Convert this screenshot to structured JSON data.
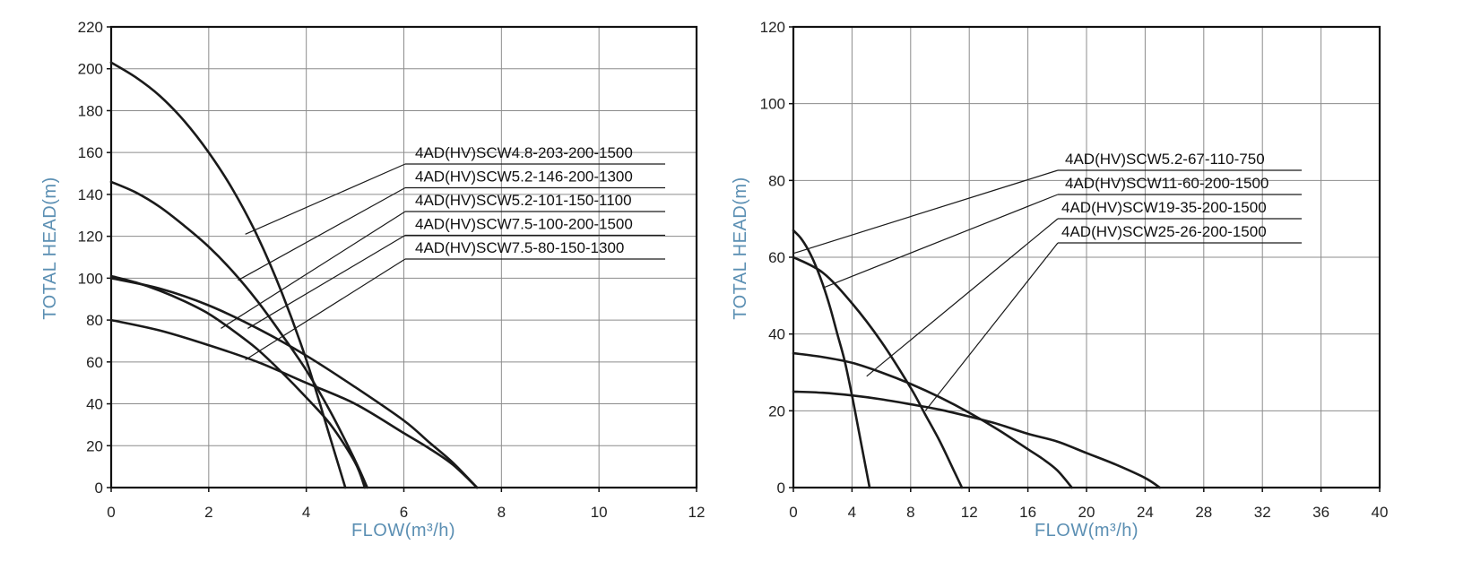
{
  "colors": {
    "axis_title": "#5b8fb3",
    "curve": "#1a1a1a",
    "grid": "#8c8c8c"
  },
  "chart_data": [
    {
      "type": "line",
      "xlabel": "FLOW(m³/h)",
      "ylabel": "TOTAL HEAD(m)",
      "xlim": [
        0,
        12
      ],
      "ylim": [
        0,
        220
      ],
      "xticks": [
        0,
        2,
        4,
        6,
        8,
        10,
        12
      ],
      "yticks": [
        0,
        20,
        40,
        60,
        80,
        100,
        120,
        140,
        160,
        180,
        200,
        220
      ],
      "grid": true,
      "series": [
        {
          "name": "4AD(HV)SCW4.8-203-200-1500",
          "x": [
            0,
            0.5,
            1,
            1.5,
            2,
            2.5,
            3,
            3.5,
            4,
            4.5,
            4.8
          ],
          "y": [
            203,
            196,
            187,
            175,
            160,
            142,
            120,
            93,
            61,
            23,
            0
          ]
        },
        {
          "name": "4AD(HV)SCW5.2-146-200-1300",
          "x": [
            0,
            0.5,
            1,
            1.5,
            2,
            2.5,
            3,
            3.5,
            4,
            4.5,
            5,
            5.25
          ],
          "y": [
            146,
            141,
            134,
            125,
            115,
            103,
            89,
            73,
            56,
            36,
            13,
            0
          ]
        },
        {
          "name": "4AD(HV)SCW5.2-101-150-1100",
          "x": [
            0,
            0.5,
            1,
            1.5,
            2,
            2.5,
            3,
            3.5,
            4,
            4.5,
            5,
            5.2
          ],
          "y": [
            101,
            98,
            94,
            89,
            83,
            75,
            66,
            55,
            43,
            30,
            12,
            0
          ]
        },
        {
          "name": "4AD(HV)SCW7.5-100-200-1500",
          "x": [
            0,
            1,
            2,
            3,
            4,
            5,
            6,
            6.5,
            7,
            7.5
          ],
          "y": [
            100,
            95,
            87,
            76,
            63,
            48,
            32,
            22,
            12,
            0
          ]
        },
        {
          "name": "4AD(HV)SCW7.5-80-150-1300",
          "x": [
            0,
            1,
            2,
            3,
            4,
            5,
            6,
            6.5,
            7,
            7.5
          ],
          "y": [
            80,
            75,
            68,
            60,
            50,
            40,
            26,
            19,
            11,
            0
          ]
        }
      ]
    },
    {
      "type": "line",
      "xlabel": "FLOW(m³/h)",
      "ylabel": "TOTAL HEAD(m)",
      "xlim": [
        0,
        40
      ],
      "ylim": [
        0,
        120
      ],
      "xticks": [
        0,
        4,
        8,
        12,
        16,
        20,
        24,
        28,
        32,
        36,
        40
      ],
      "yticks": [
        0,
        20,
        40,
        60,
        80,
        100,
        120
      ],
      "grid": true,
      "series": [
        {
          "name": "4AD(HV)SCW5.2-67-110-750",
          "x": [
            0,
            0.5,
            1,
            1.5,
            2,
            2.5,
            3,
            3.5,
            4,
            4.5,
            5,
            5.2
          ],
          "y": [
            67,
            65,
            62,
            58,
            53,
            47,
            40,
            33,
            24,
            14,
            4,
            0
          ]
        },
        {
          "name": "4AD(HV)SCW11-60-200-1500",
          "x": [
            0,
            2,
            4,
            6,
            8,
            9,
            10,
            11,
            11.5
          ],
          "y": [
            60,
            56,
            48,
            38,
            26,
            19,
            12,
            4,
            0
          ]
        },
        {
          "name": "4AD(HV)SCW19-35-200-1500",
          "x": [
            0,
            2,
            4,
            6,
            8,
            10,
            12,
            14,
            16,
            17,
            18,
            19
          ],
          "y": [
            35,
            34,
            32.5,
            30,
            27,
            23.5,
            19.5,
            15,
            10,
            7.5,
            4.5,
            0
          ]
        },
        {
          "name": "4AD(HV)SCW25-26-200-1500",
          "x": [
            0,
            2,
            4,
            6,
            8,
            10,
            12,
            14,
            16,
            18,
            20,
            22,
            24,
            25
          ],
          "y": [
            25,
            24.7,
            24,
            23,
            21.7,
            20.3,
            18.5,
            16.5,
            14,
            12,
            9,
            6,
            2.5,
            0
          ]
        }
      ]
    }
  ]
}
